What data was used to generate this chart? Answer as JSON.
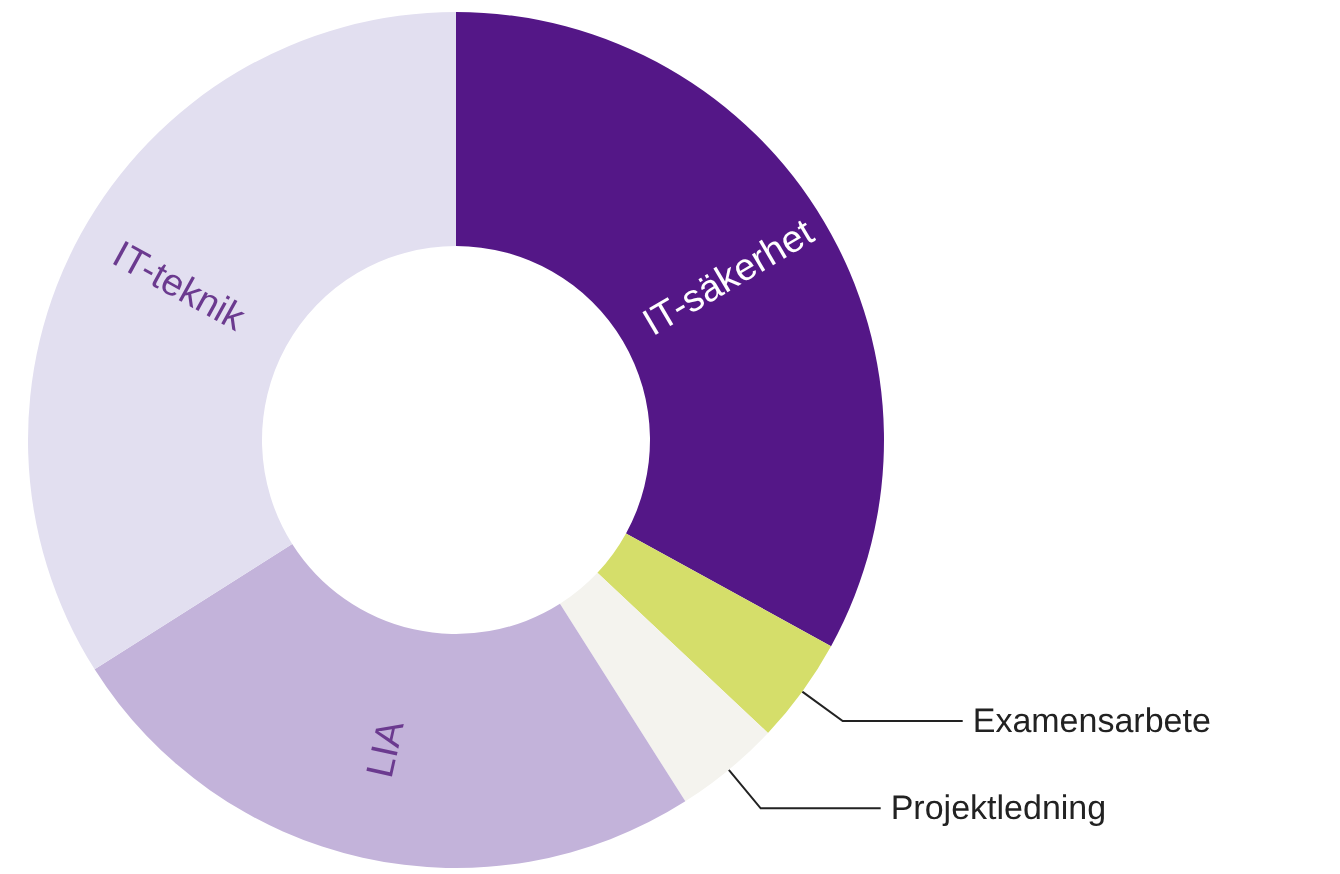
{
  "chart_data": {
    "type": "donut",
    "categories": [
      "IT-säkerhet",
      "Examensarbete",
      "Projektledning",
      "LIA",
      "IT-teknik"
    ],
    "values": [
      33,
      4,
      4,
      25,
      34
    ],
    "colors": [
      "#541787",
      "#d5de6a",
      "#f4f3ee",
      "#c3b3da",
      "#e2dff0"
    ],
    "legend": false
  }
}
